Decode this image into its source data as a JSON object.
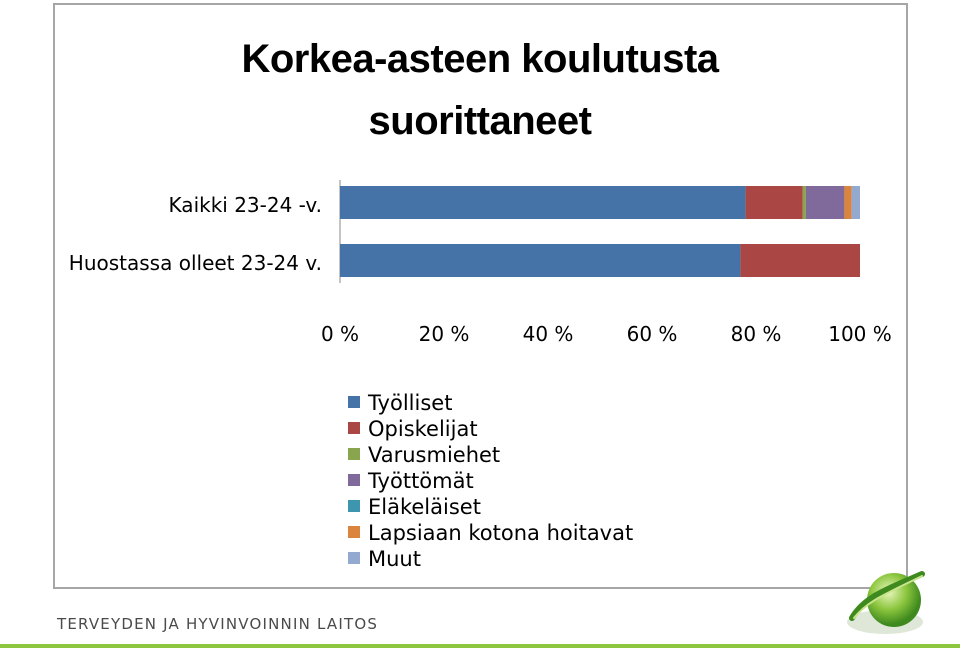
{
  "chart_data": {
    "type": "bar",
    "orientation": "horizontal",
    "stacked": "percent",
    "title_lines": [
      "Korkea-asteen koulutusta",
      "suorittaneet"
    ],
    "categories": [
      "Kaikki 23-24 -v.",
      "Huostassa olleet 23-24 v."
    ],
    "series": [
      {
        "name": "Työlliset",
        "color": "#4572a7",
        "values": [
          78,
          77
        ]
      },
      {
        "name": "Opiskelijat",
        "color": "#aa4643",
        "values": [
          11,
          23
        ]
      },
      {
        "name": "Varusmiehet",
        "color": "#89a54e",
        "values": [
          0.6,
          0
        ]
      },
      {
        "name": "Työttömät",
        "color": "#80699b",
        "values": [
          7.4,
          0
        ]
      },
      {
        "name": "Eläkeläiset",
        "color": "#3d96ae",
        "values": [
          0,
          0
        ]
      },
      {
        "name": "Lapsiaan kotona hoitavat",
        "color": "#db843d",
        "values": [
          1.4,
          0
        ]
      },
      {
        "name": "Muut",
        "color": "#93a9cf",
        "values": [
          1.6,
          0
        ]
      }
    ],
    "xticks": [
      "0 %",
      "20 %",
      "40 %",
      "60 %",
      "80 %",
      "100 %"
    ],
    "xlim": [
      0,
      100
    ],
    "grid": false,
    "legend_position": "bottom"
  },
  "footer": {
    "organization": "TERVEYDEN JA HYVINVOINNIN LAITOS"
  }
}
